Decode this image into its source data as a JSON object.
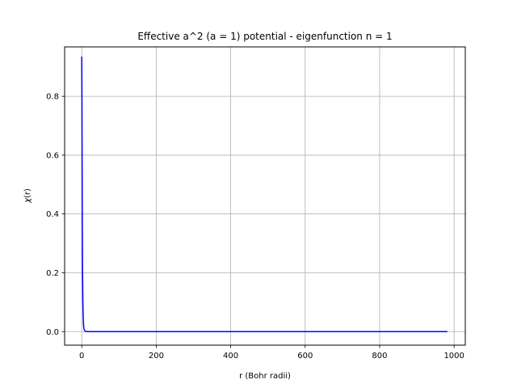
{
  "chart_data": {
    "type": "line",
    "title": "Effective a^2 (a = 1) potential - eigenfunction n = 1",
    "xlabel": "r  (Bohr radii)",
    "ylabel_symbol": "χ",
    "ylabel_arg": "(r)",
    "xlim": [
      -46,
      1030
    ],
    "ylim": [
      -0.046,
      0.968
    ],
    "xticks": [
      0,
      200,
      400,
      600,
      800,
      1000
    ],
    "xtick_labels": [
      "0",
      "200",
      "400",
      "600",
      "800",
      "1000"
    ],
    "yticks": [
      0.0,
      0.2,
      0.4,
      0.6,
      0.8
    ],
    "ytick_labels": [
      "0.0",
      "0.2",
      "0.4",
      "0.6",
      "0.8"
    ],
    "grid": true,
    "series": [
      {
        "color": "#0000ff",
        "x": [
          0,
          0.5,
          1,
          1.5,
          2,
          3,
          4,
          5,
          6,
          8,
          10,
          15,
          20,
          50,
          100,
          200,
          400,
          600,
          800,
          982
        ],
        "y": [
          0.935,
          0.8,
          0.55,
          0.35,
          0.22,
          0.1,
          0.045,
          0.02,
          0.009,
          0.003,
          0.001,
          0.0,
          0.0,
          0.0,
          0.0,
          0.0,
          0.0,
          0.0,
          0.0,
          0.0
        ]
      }
    ]
  }
}
